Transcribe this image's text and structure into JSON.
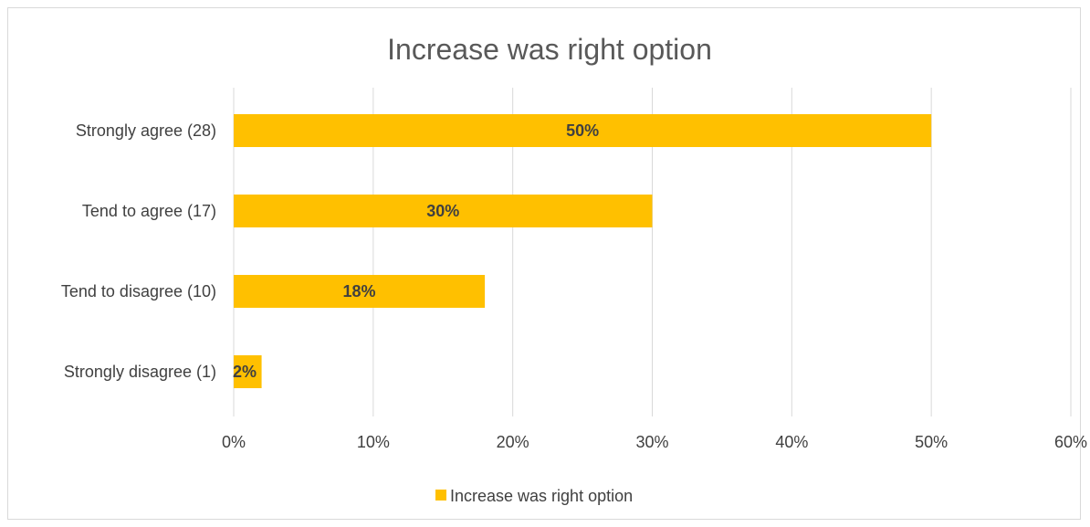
{
  "chart_data": {
    "type": "bar",
    "orientation": "horizontal",
    "title": "Increase was right option",
    "categories": [
      "Strongly agree (28)",
      "Tend to agree (17)",
      "Tend to disagree (10)",
      "Strongly disagree (1)"
    ],
    "series": [
      {
        "name": "Increase was right option",
        "values": [
          50,
          30,
          18,
          2
        ],
        "data_labels": [
          "50%",
          "30%",
          "18%",
          "2%"
        ],
        "color": "#ffc000"
      }
    ],
    "xlim": [
      0,
      60
    ],
    "x_ticks": [
      0,
      10,
      20,
      30,
      40,
      50,
      60
    ],
    "x_tick_labels": [
      "0%",
      "10%",
      "20%",
      "30%",
      "40%",
      "50%",
      "60%"
    ],
    "grid": true,
    "legend": {
      "position": "bottom",
      "label": "Increase was right option"
    }
  }
}
